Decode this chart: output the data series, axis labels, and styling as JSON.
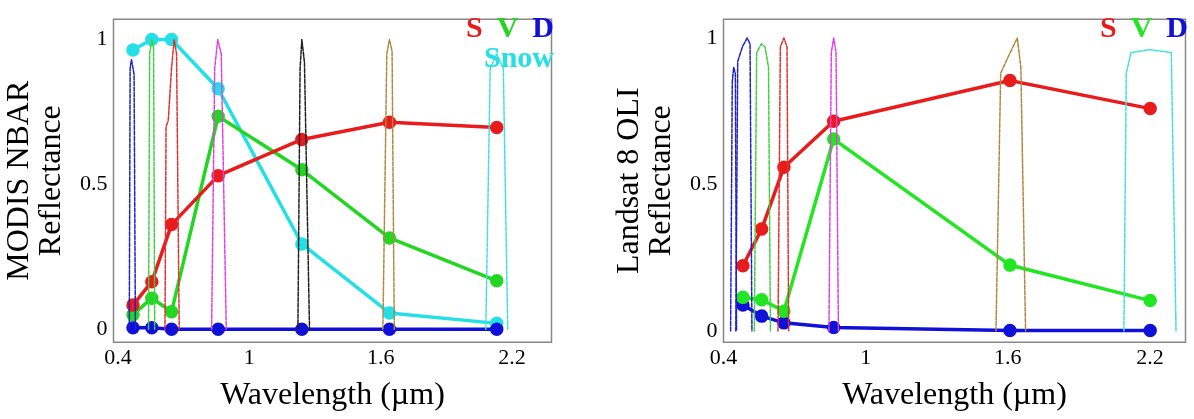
{
  "chart_data": [
    {
      "type": "line",
      "xlabel": "Wavelength (µm)",
      "ylabel": "MODIS NBAR\nReflectance",
      "xlim": [
        0.38,
        2.38
      ],
      "ylim": [
        -0.045,
        1.07
      ],
      "xticks": [
        0.4,
        1,
        1.6,
        2.2
      ],
      "yticks": [
        0,
        0.5,
        1
      ],
      "grid": false,
      "legend": "top right",
      "marker": "circle",
      "line_style": "solid",
      "series": [
        {
          "color": "#2020c8",
          "line_style": "dashed",
          "marker": "none",
          "x": [
            0.452,
            0.456,
            0.462,
            0.474,
            0.48
          ],
          "values": [
            0,
            0.9,
            0.93,
            0.88,
            0
          ]
        },
        {
          "color": "#40d040",
          "line_style": "dashed",
          "marker": "none",
          "x": [
            0.54,
            0.545,
            0.555,
            0.563,
            0.568
          ],
          "values": [
            0,
            0.95,
            1.0,
            0.97,
            0
          ]
        },
        {
          "color": "#e03030",
          "line_style": "dashed",
          "marker": "none",
          "x": [
            0.615,
            0.62,
            0.63,
            0.645,
            0.657,
            0.668,
            0.68
          ],
          "values": [
            0,
            0.7,
            0.72,
            0.9,
            1.0,
            0.95,
            0
          ]
        },
        {
          "color": "#e040e0",
          "line_style": "dashed",
          "marker": "none",
          "x": [
            0.828,
            0.842,
            0.856,
            0.872,
            0.895
          ],
          "values": [
            0,
            0.9,
            1.0,
            0.95,
            0
          ]
        },
        {
          "color": "#202020",
          "line_style": "dashed",
          "marker": "none",
          "x": [
            1.222,
            1.232,
            1.24,
            1.252,
            1.275
          ],
          "values": [
            0,
            0.9,
            1.0,
            0.92,
            0
          ]
        },
        {
          "color": "#b08840",
          "line_style": "dashed",
          "marker": "none",
          "x": [
            1.61,
            1.628,
            1.64,
            1.652,
            1.662
          ],
          "values": [
            0,
            0.95,
            1.0,
            0.96,
            0
          ]
        },
        {
          "color": "#40e0e0",
          "line_style": "dashed",
          "marker": "none",
          "x": [
            2.08,
            2.1,
            2.13,
            2.16,
            2.18
          ],
          "values": [
            0,
            0.9,
            0.95,
            0.9,
            0
          ]
        },
        {
          "name": "S",
          "color": "#e81c1c",
          "x": [
            0.469,
            0.555,
            0.645,
            0.858,
            1.24,
            1.64,
            2.13
          ],
          "values": [
            0.083,
            0.164,
            0.361,
            0.53,
            0.655,
            0.714,
            0.696
          ]
        },
        {
          "name": "V",
          "color": "#22d622",
          "x": [
            0.469,
            0.555,
            0.645,
            0.858,
            1.24,
            1.64,
            2.13
          ],
          "values": [
            0.05,
            0.107,
            0.06,
            0.735,
            0.55,
            0.315,
            0.167
          ]
        },
        {
          "name": "D",
          "color": "#1010d8",
          "x": [
            0.469,
            0.555,
            0.645,
            0.858,
            1.24,
            1.64,
            2.13
          ],
          "values": [
            0.005,
            0.005,
            0,
            0,
            0,
            0,
            0
          ]
        },
        {
          "name": "Snow",
          "color": "#22e0e6",
          "x": [
            0.469,
            0.555,
            0.645,
            0.858,
            1.24,
            1.64,
            2.13
          ],
          "values": [
            0.964,
            1.0,
            1.0,
            0.83,
            0.294,
            0.056,
            0.02
          ]
        }
      ]
    },
    {
      "type": "line",
      "xlabel": "Wavelength (µm)",
      "ylabel": "Landsat 8 OLI\nReflectance",
      "xlim": [
        0.4,
        2.35
      ],
      "ylim": [
        -0.038,
        1.064
      ],
      "xticks": [
        0.4,
        1,
        1.6,
        2.2
      ],
      "yticks": [
        0,
        0.5,
        1
      ],
      "grid": false,
      "legend": "top right",
      "marker": "circle",
      "line_style": "solid",
      "series": [
        {
          "color": "#2020c8",
          "line_style": "dashed",
          "marker": "none",
          "x": [
            0.43,
            0.437,
            0.443,
            0.45,
            0.455
          ],
          "values": [
            0,
            0.85,
            0.9,
            0.88,
            0
          ]
        },
        {
          "color": "#2020c8",
          "line_style": "dashed",
          "marker": "none",
          "x": [
            0.452,
            0.46,
            0.48,
            0.5,
            0.512,
            0.52
          ],
          "values": [
            0,
            0.92,
            0.97,
            1.0,
            0.98,
            0
          ]
        },
        {
          "color": "#40d040",
          "line_style": "dashed",
          "marker": "none",
          "x": [
            0.53,
            0.54,
            0.56,
            0.575,
            0.59,
            0.598
          ],
          "values": [
            0,
            0.95,
            0.98,
            0.97,
            0.9,
            0
          ]
        },
        {
          "color": "#e03030",
          "line_style": "dashed",
          "marker": "none",
          "x": [
            0.63,
            0.64,
            0.655,
            0.668,
            0.675
          ],
          "values": [
            0,
            0.97,
            1.0,
            0.97,
            0
          ]
        },
        {
          "color": "#e040e0",
          "line_style": "dashed",
          "marker": "none",
          "x": [
            0.845,
            0.855,
            0.865,
            0.875,
            0.885
          ],
          "values": [
            0,
            0.95,
            1.0,
            0.95,
            0
          ]
        },
        {
          "color": "#b08840",
          "line_style": "dashed",
          "marker": "none",
          "x": [
            1.55,
            1.57,
            1.61,
            1.64,
            1.655,
            1.675
          ],
          "values": [
            0,
            0.88,
            0.95,
            1.0,
            0.9,
            0
          ]
        },
        {
          "color": "#40e0e0",
          "line_style": "dashed",
          "marker": "none",
          "x": [
            2.09,
            2.1,
            2.12,
            2.2,
            2.29,
            2.31
          ],
          "values": [
            0,
            0.88,
            0.95,
            0.96,
            0.95,
            0
          ]
        },
        {
          "name": "S",
          "color": "#e81c1c",
          "x": [
            0.482,
            0.561,
            0.655,
            0.865,
            1.609,
            2.201
          ],
          "values": [
            0.223,
            0.348,
            0.559,
            0.716,
            0.855,
            0.759
          ]
        },
        {
          "name": "V",
          "color": "#22e622",
          "x": [
            0.482,
            0.561,
            0.655,
            0.865,
            1.609,
            2.201
          ],
          "values": [
            0.115,
            0.107,
            0.068,
            0.655,
            0.225,
            0.104
          ]
        },
        {
          "name": "D",
          "color": "#1010d8",
          "x": [
            0.482,
            0.561,
            0.655,
            0.865,
            1.609,
            2.201
          ],
          "values": [
            0.089,
            0.051,
            0.028,
            0.012,
            0.002,
            0.002
          ]
        }
      ]
    }
  ]
}
